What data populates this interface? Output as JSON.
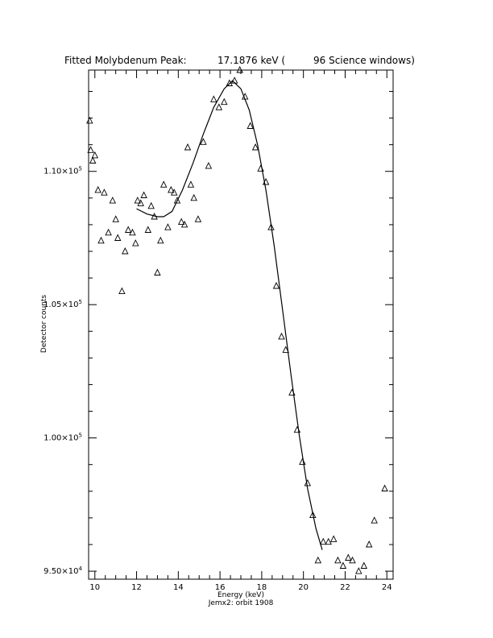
{
  "chart_data": {
    "type": "scatter",
    "title": {
      "main": "Fitted Molybdenum Peak:",
      "energy": "17.1876 keV (",
      "windows": "96 Science windows)"
    },
    "xlabel": "Energy (keV)",
    "ylabel": "Detector counts",
    "footer": "Jemx2: orbit 1908",
    "xlim": [
      9.7,
      24.3
    ],
    "ylim": [
      94700,
      113800
    ],
    "x_ticks": [
      10,
      12,
      14,
      16,
      18,
      20,
      22,
      24
    ],
    "x_tick_labels": [
      "10",
      "12",
      "14",
      "16",
      "18",
      "20",
      "22",
      "24"
    ],
    "y_ticks": [
      95000,
      100000,
      105000,
      110000
    ],
    "y_tick_labels": [
      {
        "mantissa": "9.50",
        "exp": "4"
      },
      {
        "mantissa": "1.00",
        "exp": "5"
      },
      {
        "mantissa": "1.05",
        "exp": "5"
      },
      {
        "mantissa": "1.10",
        "exp": "5"
      }
    ],
    "series": [
      {
        "marker": "triangle",
        "points": [
          [
            9.75,
            111900
          ],
          [
            9.8,
            110800
          ],
          [
            9.9,
            110400
          ],
          [
            10.0,
            110600
          ],
          [
            10.15,
            109300
          ],
          [
            10.3,
            107400
          ],
          [
            10.45,
            109200
          ],
          [
            10.65,
            107700
          ],
          [
            10.85,
            108900
          ],
          [
            11.0,
            108200
          ],
          [
            11.1,
            107500
          ],
          [
            11.3,
            105500
          ],
          [
            11.45,
            107000
          ],
          [
            11.6,
            107800
          ],
          [
            11.8,
            107700
          ],
          [
            11.95,
            107300
          ],
          [
            12.05,
            108900
          ],
          [
            12.2,
            108800
          ],
          [
            12.35,
            109100
          ],
          [
            12.55,
            107800
          ],
          [
            12.7,
            108700
          ],
          [
            12.85,
            108300
          ],
          [
            13.0,
            106200
          ],
          [
            13.15,
            107400
          ],
          [
            13.3,
            109500
          ],
          [
            13.5,
            107900
          ],
          [
            13.65,
            109300
          ],
          [
            13.8,
            109200
          ],
          [
            13.95,
            108900
          ],
          [
            14.15,
            108100
          ],
          [
            14.3,
            108000
          ],
          [
            14.45,
            110900
          ],
          [
            14.6,
            109500
          ],
          [
            14.75,
            109000
          ],
          [
            14.95,
            108200
          ],
          [
            15.2,
            111100
          ],
          [
            15.45,
            110200
          ],
          [
            15.7,
            112700
          ],
          [
            15.95,
            112400
          ],
          [
            16.2,
            112600
          ],
          [
            16.45,
            113300
          ],
          [
            16.7,
            113400
          ],
          [
            16.95,
            113800
          ],
          [
            17.2,
            112800
          ],
          [
            17.45,
            111700
          ],
          [
            17.7,
            110900
          ],
          [
            17.95,
            110100
          ],
          [
            18.2,
            109600
          ],
          [
            18.45,
            107900
          ],
          [
            18.7,
            105700
          ],
          [
            18.95,
            103800
          ],
          [
            19.15,
            103300
          ],
          [
            19.45,
            101700
          ],
          [
            19.7,
            100300
          ],
          [
            19.95,
            99100
          ],
          [
            20.2,
            98300
          ],
          [
            20.45,
            97100
          ],
          [
            20.7,
            95400
          ],
          [
            20.95,
            96100
          ],
          [
            21.2,
            96100
          ],
          [
            21.45,
            96200
          ],
          [
            21.65,
            95400
          ],
          [
            21.9,
            95200
          ],
          [
            22.15,
            95500
          ],
          [
            22.35,
            95400
          ],
          [
            22.65,
            95000
          ],
          [
            22.9,
            95200
          ],
          [
            23.15,
            96000
          ],
          [
            23.4,
            96900
          ],
          [
            23.9,
            98100
          ]
        ]
      },
      {
        "marker": "line",
        "points": [
          [
            12.0,
            108600
          ],
          [
            12.5,
            108400
          ],
          [
            13.0,
            108300
          ],
          [
            13.3,
            108300
          ],
          [
            13.7,
            108500
          ],
          [
            14.2,
            109300
          ],
          [
            14.7,
            110300
          ],
          [
            15.2,
            111400
          ],
          [
            15.7,
            112400
          ],
          [
            16.2,
            113100
          ],
          [
            16.6,
            113400
          ],
          [
            17.0,
            113100
          ],
          [
            17.4,
            112300
          ],
          [
            17.8,
            111000
          ],
          [
            18.2,
            109300
          ],
          [
            18.6,
            107200
          ],
          [
            19.0,
            104800
          ],
          [
            19.4,
            102400
          ],
          [
            19.8,
            100100
          ],
          [
            20.2,
            98100
          ],
          [
            20.6,
            96600
          ],
          [
            20.9,
            95800
          ]
        ]
      }
    ]
  }
}
